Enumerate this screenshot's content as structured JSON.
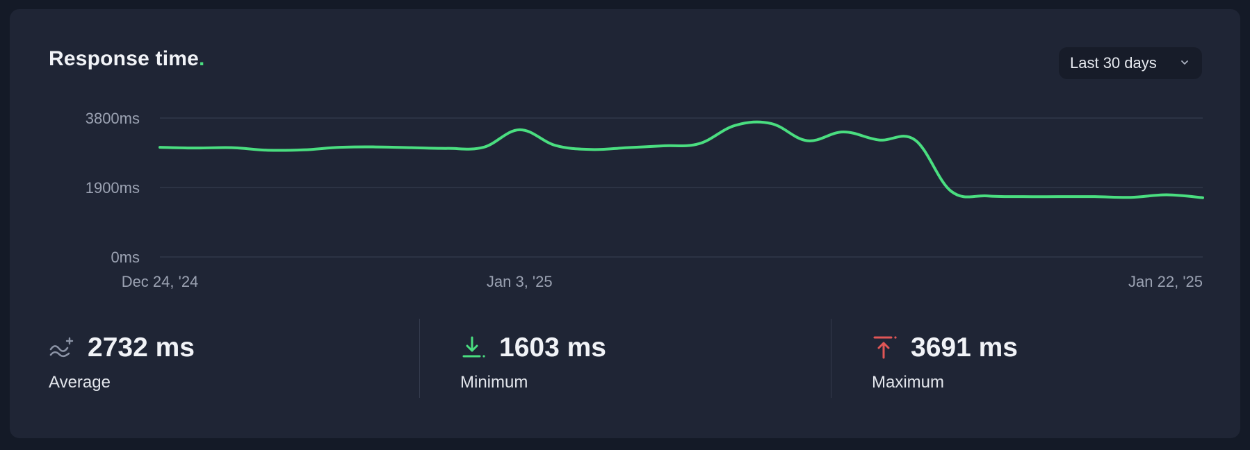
{
  "card": {
    "title": "Response time",
    "title_dot": "."
  },
  "range_select": {
    "label": "Last 30 days"
  },
  "stats": {
    "average": {
      "value": "2732 ms",
      "label": "Average",
      "icon": "trend-wave-icon"
    },
    "minimum": {
      "value": "1603 ms",
      "label": "Minimum",
      "icon": "arrow-down-to-line-icon"
    },
    "maximum": {
      "value": "3691 ms",
      "label": "Maximum",
      "icon": "arrow-up-from-line-icon"
    }
  },
  "colors": {
    "line": "#4ade80",
    "accent_dot": "#4ade80",
    "max_icon": "#e05656",
    "min_icon": "#4ade80"
  },
  "chart_data": {
    "type": "line",
    "title": "Response time",
    "ylim": [
      0,
      3800
    ],
    "yticks": [
      0,
      1900,
      3800
    ],
    "ytick_labels": [
      "0ms",
      "1900ms",
      "3800ms"
    ],
    "xlim": [
      "2024-12-24",
      "2025-01-22"
    ],
    "xtick_labels": [
      {
        "date": "2024-12-24",
        "label": "Dec 24, '24"
      },
      {
        "date": "2025-01-03",
        "label": "Jan 3, '25"
      },
      {
        "date": "2025-01-22",
        "label": "Jan 22, '25"
      }
    ],
    "grid": true,
    "series": [
      {
        "x": [
          "2024-12-24",
          "2024-12-25",
          "2024-12-26",
          "2024-12-27",
          "2024-12-28",
          "2024-12-29",
          "2024-12-30",
          "2024-12-31",
          "2025-01-01",
          "2025-01-02",
          "2025-01-03",
          "2025-01-04",
          "2025-01-05",
          "2025-01-06",
          "2025-01-07",
          "2025-01-08",
          "2025-01-09",
          "2025-01-10",
          "2025-01-11",
          "2025-01-12",
          "2025-01-13",
          "2025-01-14",
          "2025-01-15",
          "2025-01-16",
          "2025-01-17",
          "2025-01-18",
          "2025-01-19",
          "2025-01-20",
          "2025-01-21",
          "2025-01-22"
        ],
        "y": [
          3000,
          2980,
          2990,
          2920,
          2930,
          3000,
          3010,
          2990,
          2970,
          3000,
          3480,
          3050,
          2940,
          2990,
          3040,
          3100,
          3600,
          3650,
          3180,
          3420,
          3200,
          3200,
          1800,
          1670,
          1650,
          1650,
          1650,
          1630,
          1700,
          1620
        ]
      }
    ]
  }
}
